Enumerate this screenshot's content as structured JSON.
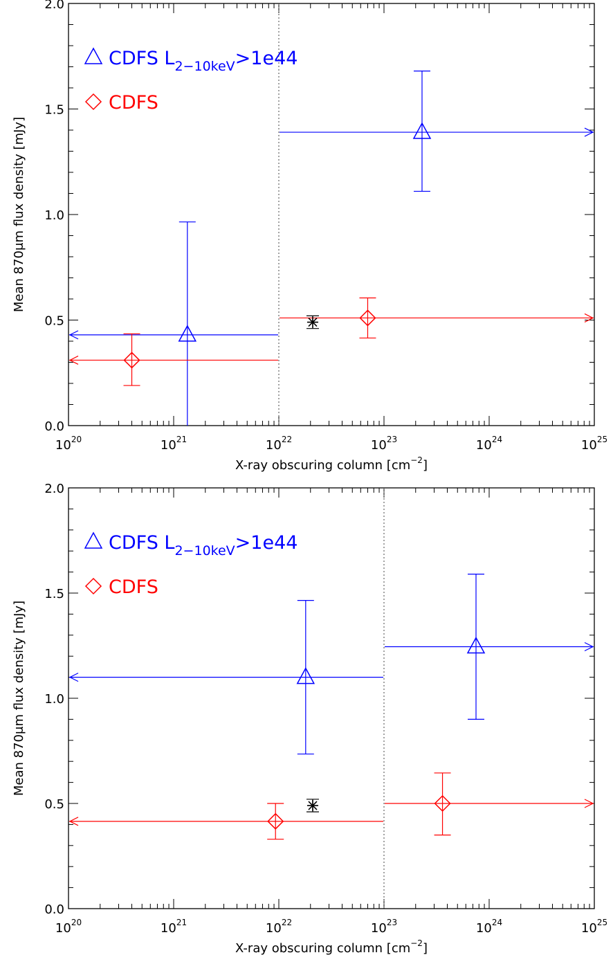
{
  "chart_data": [
    {
      "type": "scatter",
      "xscale": "log",
      "xlim": [
        1e+20,
        1e+25
      ],
      "ylim": [
        0.0,
        2.0
      ],
      "xlabel": "X-ray obscuring column [cm",
      "xlabel_sup": "−2",
      "xlabel_end": "]",
      "ylabel": "Mean 870μm flux density [mJy]",
      "x_ticks": [
        {
          "base": "10",
          "exp": "20"
        },
        {
          "base": "10",
          "exp": "21"
        },
        {
          "base": "10",
          "exp": "22"
        },
        {
          "base": "10",
          "exp": "23"
        },
        {
          "base": "10",
          "exp": "24"
        },
        {
          "base": "10",
          "exp": "25"
        }
      ],
      "y_ticks": [
        "0.0",
        "0.5",
        "1.0",
        "1.5",
        "2.0"
      ],
      "divider_x": 1e+22,
      "legend": [
        {
          "label": "CDFS L",
          "sub": "2−10keV",
          "rest": ">1e44",
          "marker": "triangle",
          "color": "#0000ff"
        },
        {
          "label": "CDFS",
          "sub": "",
          "rest": "",
          "marker": "diamond",
          "color": "#ff0000"
        }
      ],
      "series": [
        {
          "name": "CDFS L2-10keV>1e44",
          "marker": "triangle",
          "color": "#0000ff",
          "points": [
            {
              "x": 1.35e+21,
              "y": 0.43,
              "y_err_low": 0.0,
              "y_err_high": 0.965,
              "x_range": [
                1e+20,
                1e+22
              ]
            },
            {
              "x": 2.3e+23,
              "y": 1.39,
              "y_err_low": 1.11,
              "y_err_high": 1.68,
              "x_range": [
                1e+22,
                1e+25
              ]
            }
          ]
        },
        {
          "name": "CDFS",
          "marker": "diamond",
          "color": "#ff0000",
          "points": [
            {
              "x": 4e+20,
              "y": 0.31,
              "y_err_low": 0.19,
              "y_err_high": 0.435,
              "x_range": [
                1e+20,
                1e+22
              ]
            },
            {
              "x": 7e+22,
              "y": 0.51,
              "y_err_low": 0.415,
              "y_err_high": 0.605,
              "x_range": [
                1e+22,
                1e+25
              ]
            }
          ]
        }
      ],
      "reference_point": {
        "x": 2.1e+22,
        "y": 0.49,
        "y_err_low": 0.46,
        "y_err_high": 0.52,
        "color": "#000000"
      }
    },
    {
      "type": "scatter",
      "xscale": "log",
      "xlim": [
        1e+20,
        1e+25
      ],
      "ylim": [
        0.0,
        2.0
      ],
      "xlabel": "X-ray obscuring column [cm",
      "xlabel_sup": "−2",
      "xlabel_end": "]",
      "ylabel": "Mean 870μm flux density [mJy]",
      "x_ticks": [
        {
          "base": "10",
          "exp": "20"
        },
        {
          "base": "10",
          "exp": "21"
        },
        {
          "base": "10",
          "exp": "22"
        },
        {
          "base": "10",
          "exp": "23"
        },
        {
          "base": "10",
          "exp": "24"
        },
        {
          "base": "10",
          "exp": "25"
        }
      ],
      "y_ticks": [
        "0.0",
        "0.5",
        "1.0",
        "1.5",
        "2.0"
      ],
      "divider_x": 1e+23,
      "legend": [
        {
          "label": "CDFS L",
          "sub": "2−10keV",
          "rest": ">1e44",
          "marker": "triangle",
          "color": "#0000ff"
        },
        {
          "label": "CDFS",
          "sub": "",
          "rest": "",
          "marker": "diamond",
          "color": "#ff0000"
        }
      ],
      "series": [
        {
          "name": "CDFS L2-10keV>1e44",
          "marker": "triangle",
          "color": "#0000ff",
          "points": [
            {
              "x": 1.8e+22,
              "y": 1.1,
              "y_err_low": 0.735,
              "y_err_high": 1.465,
              "x_range": [
                1e+20,
                1e+23
              ]
            },
            {
              "x": 7.5e+23,
              "y": 1.245,
              "y_err_low": 0.9,
              "y_err_high": 1.59,
              "x_range": [
                1e+23,
                1e+25
              ]
            }
          ]
        },
        {
          "name": "CDFS",
          "marker": "diamond",
          "color": "#ff0000",
          "points": [
            {
              "x": 9.3e+21,
              "y": 0.415,
              "y_err_low": 0.33,
              "y_err_high": 0.5,
              "x_range": [
                1e+20,
                1e+23
              ]
            },
            {
              "x": 3.6e+23,
              "y": 0.5,
              "y_err_low": 0.35,
              "y_err_high": 0.645,
              "x_range": [
                1e+23,
                1e+25
              ]
            }
          ]
        }
      ],
      "reference_point": {
        "x": 2.1e+22,
        "y": 0.49,
        "y_err_low": 0.46,
        "y_err_high": 0.52,
        "color": "#000000"
      }
    }
  ]
}
